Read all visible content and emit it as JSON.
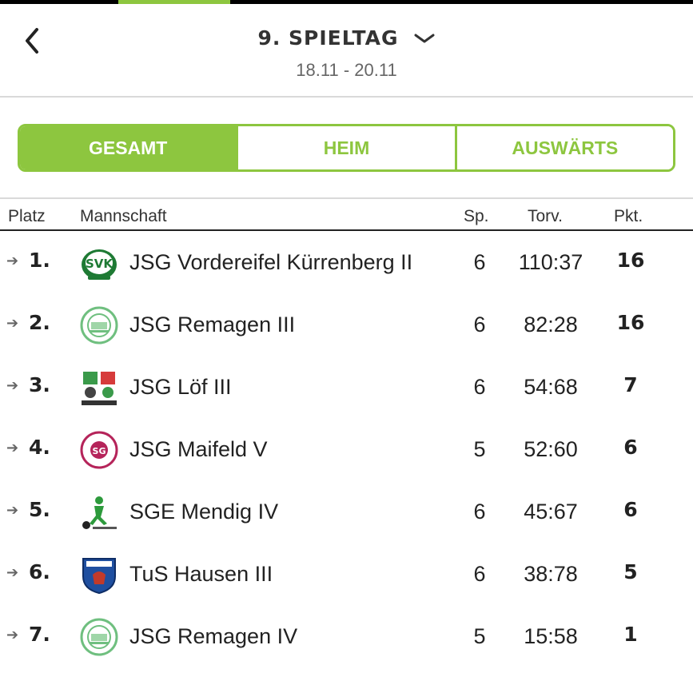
{
  "header": {
    "back_icon": "chevron-left-icon",
    "title": "9. SPIELTAG",
    "dropdown_icon": "chevron-down-icon",
    "date_range": "18.11 - 20.11"
  },
  "colors": {
    "accent": "#8dc63f",
    "text": "#222222",
    "muted": "#666666"
  },
  "tabs": [
    {
      "label": "GESAMT",
      "active": true
    },
    {
      "label": "HEIM",
      "active": false
    },
    {
      "label": "AUSWÄRTS",
      "active": false
    }
  ],
  "table": {
    "columns": {
      "place": "Platz",
      "team": "Mannschaft",
      "games": "Sp.",
      "goals": "Torv.",
      "points": "Pkt."
    },
    "rows": [
      {
        "trend_icon": "arrow-right-icon",
        "place": "1.",
        "team": "JSG Vordereifel Kürrenberg II",
        "games": "6",
        "goals": "110:37",
        "points": "16",
        "logo": "svk-crest-icon"
      },
      {
        "trend_icon": "arrow-right-icon",
        "place": "2.",
        "team": "JSG Remagen III",
        "games": "6",
        "goals": "82:28",
        "points": "16",
        "logo": "remagen-crest-icon"
      },
      {
        "trend_icon": "arrow-right-icon",
        "place": "3.",
        "team": "JSG Löf III",
        "games": "6",
        "goals": "54:68",
        "points": "7",
        "logo": "loef-crest-icon"
      },
      {
        "trend_icon": "arrow-right-icon",
        "place": "4.",
        "team": "JSG Maifeld V",
        "games": "5",
        "goals": "52:60",
        "points": "6",
        "logo": "maifeld-crest-icon"
      },
      {
        "trend_icon": "arrow-right-icon",
        "place": "5.",
        "team": "SGE Mendig IV",
        "games": "6",
        "goals": "45:67",
        "points": "6",
        "logo": "mendig-crest-icon"
      },
      {
        "trend_icon": "arrow-right-icon",
        "place": "6.",
        "team": "TuS Hausen III",
        "games": "6",
        "goals": "38:78",
        "points": "5",
        "logo": "hausen-crest-icon"
      },
      {
        "trend_icon": "arrow-right-icon",
        "place": "7.",
        "team": "JSG Remagen IV",
        "games": "5",
        "goals": "15:58",
        "points": "1",
        "logo": "remagen-crest-icon"
      }
    ]
  }
}
